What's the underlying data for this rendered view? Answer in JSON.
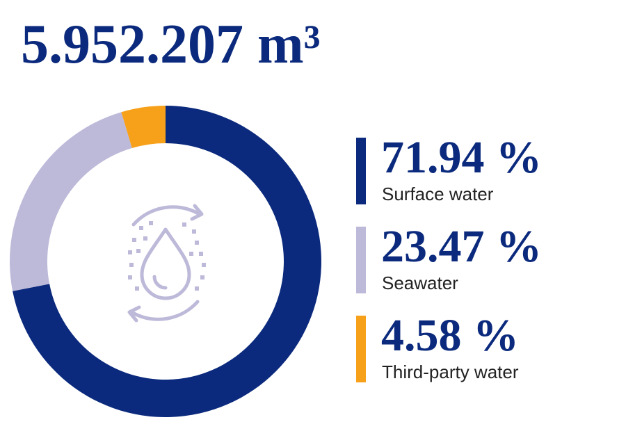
{
  "chart_data": {
    "type": "donut",
    "title": "5.952.207 m³",
    "categories": [
      "Surface water",
      "Seawater",
      "Third-party water"
    ],
    "values": [
      71.94,
      23.47,
      4.58
    ],
    "value_labels": [
      "71.94 %",
      "23.47 %",
      "4.58 %"
    ],
    "colors": [
      "#0b2a7d",
      "#bdb9d9",
      "#f7a11a"
    ]
  }
}
